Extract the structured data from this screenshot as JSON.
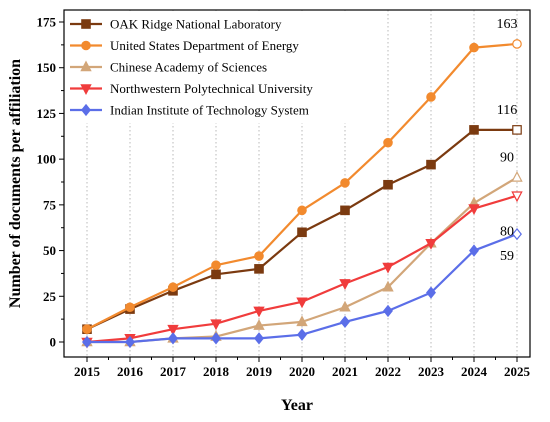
{
  "chart_data": {
    "type": "line",
    "title": "",
    "xlabel": "Year",
    "ylabel": "Number of documents per affiliation",
    "x": [
      2015,
      2016,
      2017,
      2018,
      2019,
      2020,
      2021,
      2022,
      2023,
      2024,
      2025
    ],
    "xlim": [
      2015,
      2025
    ],
    "ylim": [
      0,
      175
    ],
    "yticks": [
      0,
      25,
      50,
      75,
      100,
      125,
      150,
      175
    ],
    "grid": "vertical dotted",
    "legend_position": "top-left",
    "series": [
      {
        "name": "OAK Ridge National Laboratory",
        "color": "#7B3A10",
        "marker": "square",
        "values": [
          7,
          18,
          28,
          37,
          40,
          60,
          72,
          86,
          97,
          116,
          116
        ],
        "end_label": "116"
      },
      {
        "name": "United States Department of Energy",
        "color": "#F28A2E",
        "marker": "circle",
        "values": [
          7,
          19,
          30,
          42,
          47,
          72,
          87,
          109,
          134,
          161,
          163
        ],
        "end_label": "163"
      },
      {
        "name": "Chinese Academy of Sciences",
        "color": "#D2A679",
        "marker": "triangle-up",
        "values": [
          0,
          0,
          2,
          3,
          9,
          11,
          19,
          30,
          54,
          76,
          90
        ],
        "end_label": "90"
      },
      {
        "name": "Northwestern Polytechnical University",
        "color": "#F03C3C",
        "marker": "triangle-down",
        "values": [
          0,
          2,
          7,
          10,
          17,
          22,
          32,
          41,
          54,
          73,
          80
        ],
        "end_label": "80"
      },
      {
        "name": "Indian Institute of Technology System",
        "color": "#5B6EE8",
        "marker": "diamond",
        "values": [
          0,
          0,
          2,
          2,
          2,
          4,
          11,
          17,
          27,
          50,
          59
        ],
        "end_label": "59"
      }
    ]
  }
}
